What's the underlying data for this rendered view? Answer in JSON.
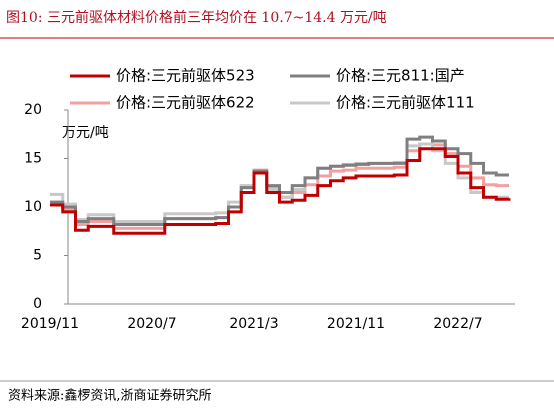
{
  "chart_data": {
    "type": "line",
    "title": "图10:  三元前驱体材料价格前三年均价在 10.7~14.4 万元/吨",
    "y_label": "万元/吨",
    "source": "资料来源:鑫椤资讯,浙商证券研究所",
    "x": [
      "2019/11",
      null,
      null,
      null,
      null,
      null,
      null,
      null,
      "2020/7",
      null,
      null,
      null,
      null,
      null,
      null,
      null,
      "2021/3",
      null,
      null,
      null,
      null,
      null,
      null,
      null,
      "2021/11",
      null,
      null,
      null,
      null,
      null,
      null,
      null,
      "2022/7",
      null,
      null,
      null,
      null
    ],
    "ylim": [
      0,
      20
    ],
    "yticks": [
      0,
      5,
      10,
      15,
      20
    ],
    "series": [
      {
        "name": "价格:三元前驱体523",
        "color": "#c00000",
        "values": [
          10.2,
          9.5,
          7.6,
          8.0,
          8.0,
          7.3,
          7.3,
          7.3,
          7.3,
          8.2,
          8.2,
          8.2,
          8.2,
          8.3,
          9.5,
          11.5,
          13.5,
          11.5,
          10.5,
          10.7,
          11.2,
          12.2,
          12.7,
          13.0,
          13.2,
          13.2,
          13.2,
          13.3,
          14.8,
          16.0,
          16.0,
          15.2,
          13.5,
          12.0,
          11.0,
          10.8,
          10.9
        ]
      },
      {
        "name": "价格:三元811:国产",
        "color": "#7f7f7f",
        "values": [
          10.5,
          10.0,
          8.5,
          8.8,
          8.8,
          8.2,
          8.2,
          8.2,
          8.2,
          8.8,
          8.8,
          8.8,
          8.8,
          8.9,
          10.0,
          12.0,
          13.7,
          12.2,
          11.5,
          12.2,
          13.0,
          14.0,
          14.2,
          14.3,
          14.4,
          14.5,
          14.5,
          14.5,
          17.0,
          17.2,
          16.8,
          16.0,
          15.5,
          14.5,
          13.5,
          13.3,
          13.3
        ]
      },
      {
        "name": "价格:三元前驱体622",
        "color": "#f4a0a0",
        "values": [
          10.5,
          9.8,
          8.2,
          8.5,
          8.5,
          7.8,
          7.8,
          7.8,
          7.8,
          8.8,
          8.8,
          8.8,
          8.8,
          8.9,
          10.0,
          12.0,
          13.8,
          12.0,
          11.0,
          11.5,
          12.3,
          13.2,
          13.7,
          13.8,
          14.0,
          14.0,
          14.0,
          14.1,
          15.8,
          16.5,
          16.4,
          15.5,
          14.2,
          13.0,
          12.3,
          12.2,
          12.2
        ]
      },
      {
        "name": "价格:三元前驱体111",
        "color": "#c8c8c8",
        "values": [
          11.3,
          10.3,
          8.7,
          9.2,
          9.2,
          8.5,
          8.5,
          8.5,
          8.5,
          9.3,
          9.3,
          9.3,
          9.3,
          9.4,
          10.5,
          12.2,
          13.5,
          11.8,
          11.0,
          11.8,
          13.0,
          14.0,
          14.2,
          14.4,
          14.5,
          14.5,
          14.5,
          14.6,
          16.3,
          16.5,
          15.8,
          14.5,
          13.0,
          11.5,
          11.0,
          11.0,
          11.0
        ]
      }
    ]
  }
}
